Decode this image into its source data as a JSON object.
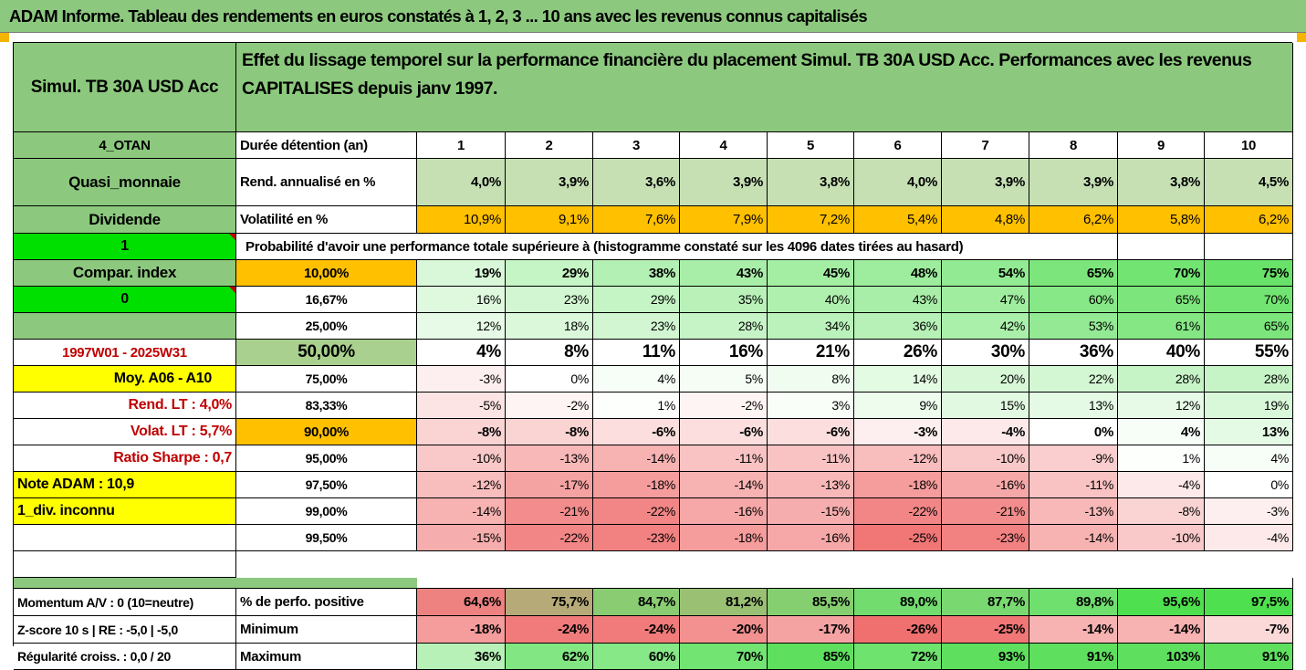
{
  "title": "ADAM Informe. Tableau des rendements en euros constatés à 1, 2, 3 ... 10 ans avec les revenus connus capitalisés",
  "colors": {
    "header_green": "#8cc97e",
    "light_green": "#c6e0b4",
    "orange": "#ffc000",
    "yellow": "#ffff00",
    "bright_green": "#00e000",
    "accent_red": "#c00000"
  },
  "fund_name": "Simul. TB 30A USD Acc",
  "description": "Effet du lissage temporel sur la performance financière du placement Simul. TB 30A USD Acc. Performances avec les revenus CAPITALISES depuis janv 1997.",
  "side": {
    "code": "4_OTAN",
    "category": "Quasi_monnaie",
    "dividend_label": "Dividende",
    "value_one": "1",
    "compare_label": "Compar. index",
    "value_zero": "0",
    "blank": "",
    "period": "1997W01 - 2025W31",
    "moy": "Moy. A06 - A10",
    "rend_lt": "Rend. LT :   4,0%",
    "volat_lt": "Volat. LT :   5,7%",
    "sharpe": "Ratio Sharpe :   0,7",
    "note": "Note ADAM : 10,9",
    "div_unknown": "1_div. inconnu"
  },
  "header_row": {
    "label": "Durée détention (an)",
    "years": [
      "1",
      "2",
      "3",
      "4",
      "5",
      "6",
      "7",
      "8",
      "9",
      "10"
    ]
  },
  "rend": {
    "label": "Rend. annualisé en %",
    "values": [
      "4,0%",
      "3,9%",
      "3,6%",
      "3,9%",
      "3,8%",
      "4,0%",
      "3,9%",
      "3,9%",
      "3,8%",
      "4,5%"
    ]
  },
  "vol": {
    "label": "Volatilité en %",
    "values": [
      "10,9%",
      "9,1%",
      "7,6%",
      "7,9%",
      "7,2%",
      "5,4%",
      "4,8%",
      "6,2%",
      "5,8%",
      "6,2%"
    ]
  },
  "prob_caption": "Probabilité d'avoir une performance totale supérieure à (histogramme constaté sur les 4096 dates tirées au hasard)",
  "percentiles": [
    {
      "p": "10,00%",
      "values": [
        "19%",
        "29%",
        "38%",
        "43%",
        "45%",
        "48%",
        "54%",
        "65%",
        "70%",
        "75%"
      ]
    },
    {
      "p": "16,67%",
      "values": [
        "16%",
        "23%",
        "29%",
        "35%",
        "40%",
        "43%",
        "47%",
        "60%",
        "65%",
        "70%"
      ]
    },
    {
      "p": "25,00%",
      "values": [
        "12%",
        "18%",
        "23%",
        "28%",
        "34%",
        "36%",
        "42%",
        "53%",
        "61%",
        "65%"
      ]
    },
    {
      "p": "50,00%",
      "values": [
        "4%",
        "8%",
        "11%",
        "16%",
        "21%",
        "26%",
        "30%",
        "36%",
        "40%",
        "55%"
      ]
    },
    {
      "p": "75,00%",
      "values": [
        "-3%",
        "0%",
        "4%",
        "5%",
        "8%",
        "14%",
        "20%",
        "22%",
        "28%",
        "28%"
      ]
    },
    {
      "p": "83,33%",
      "values": [
        "-5%",
        "-2%",
        "1%",
        "-2%",
        "3%",
        "9%",
        "15%",
        "13%",
        "12%",
        "19%"
      ]
    },
    {
      "p": "90,00%",
      "values": [
        "-8%",
        "-8%",
        "-6%",
        "-6%",
        "-6%",
        "-3%",
        "-4%",
        "0%",
        "4%",
        "13%"
      ]
    },
    {
      "p": "95,00%",
      "values": [
        "-10%",
        "-13%",
        "-14%",
        "-11%",
        "-11%",
        "-12%",
        "-10%",
        "-9%",
        "1%",
        "4%"
      ]
    },
    {
      "p": "97,50%",
      "values": [
        "-12%",
        "-17%",
        "-18%",
        "-14%",
        "-13%",
        "-18%",
        "-16%",
        "-11%",
        "-4%",
        "0%"
      ]
    },
    {
      "p": "99,00%",
      "values": [
        "-14%",
        "-21%",
        "-22%",
        "-16%",
        "-15%",
        "-22%",
        "-21%",
        "-13%",
        "-8%",
        "-3%"
      ]
    },
    {
      "p": "99,50%",
      "values": [
        "-15%",
        "-22%",
        "-23%",
        "-18%",
        "-16%",
        "-25%",
        "-23%",
        "-14%",
        "-10%",
        "-4%"
      ]
    }
  ],
  "bottom": [
    {
      "side": "Momentum A/V : 0 (10=neutre)",
      "label": "% de perfo. positive",
      "values": [
        "64,6%",
        "75,7%",
        "84,7%",
        "81,2%",
        "85,5%",
        "89,0%",
        "87,7%",
        "89,8%",
        "95,6%",
        "97,5%"
      ]
    },
    {
      "side": "Z-score 10 s  |  RE : -5,0  |  -5,0",
      "label": "Minimum",
      "values": [
        "-18%",
        "-24%",
        "-24%",
        "-20%",
        "-17%",
        "-26%",
        "-25%",
        "-14%",
        "-14%",
        "-7%"
      ]
    },
    {
      "side": "Régularité croiss. : 0,0 / 20",
      "label": "Maximum",
      "values": [
        "36%",
        "62%",
        "60%",
        "70%",
        "85%",
        "72%",
        "93%",
        "91%",
        "103%",
        "91%"
      ]
    }
  ]
}
